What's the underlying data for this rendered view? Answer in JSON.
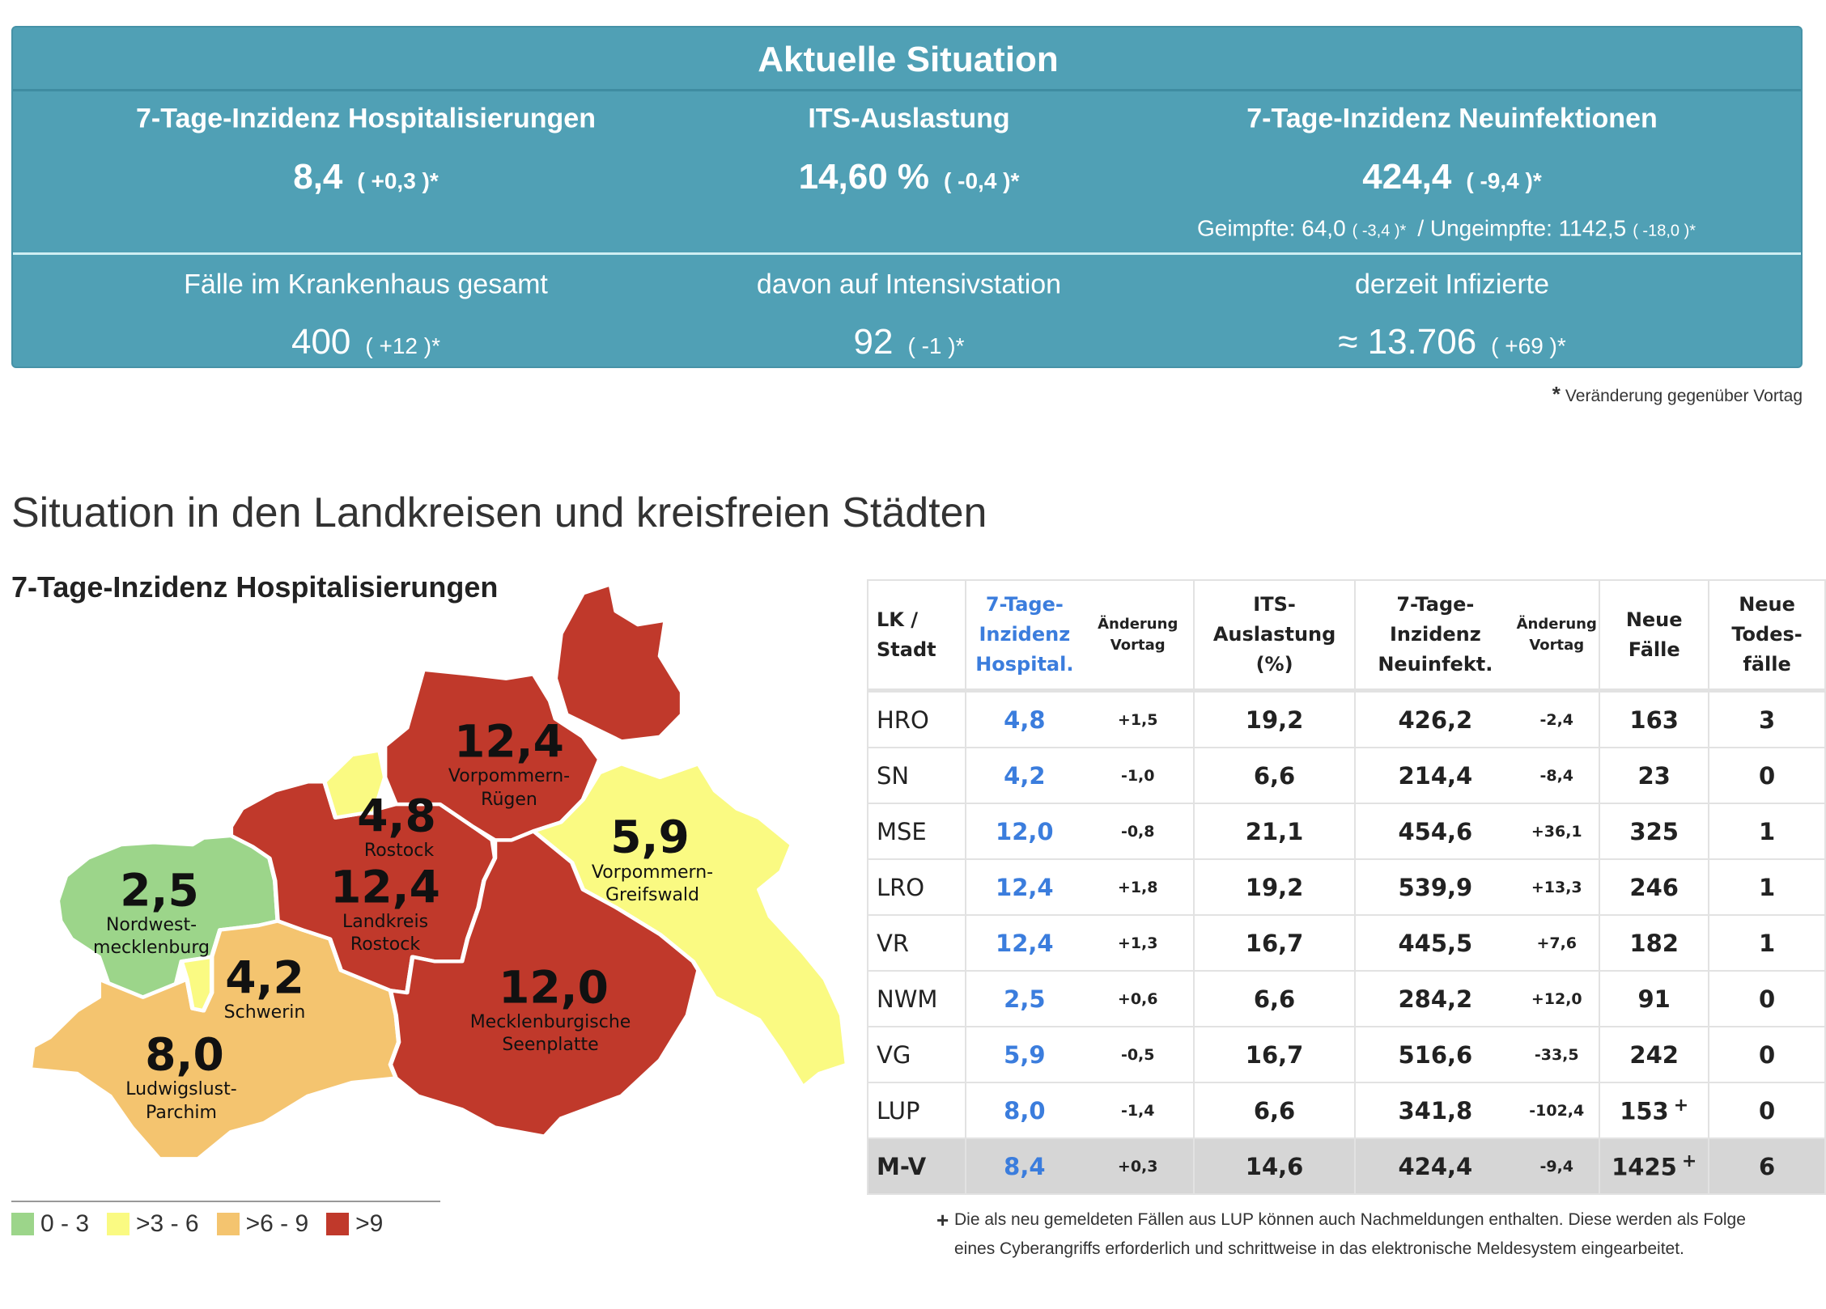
{
  "stats": {
    "title": "Aktuelle Situation",
    "hosp": {
      "label": "7-Tage-Inzidenz Hospitalisierungen",
      "value": "8,4",
      "change": "( +0,3 )*"
    },
    "its": {
      "label": "ITS-Auslastung",
      "value": "14,60 %",
      "change": "( -0,4 )*"
    },
    "neu": {
      "label": "7-Tage-Inzidenz Neuinfektionen",
      "value": "424,4",
      "change": "( -9,4 )*",
      "geimpfte_label": "Geimpfte: 64,0",
      "geimpfte_change": "( -3,4 )*",
      "separator": "/",
      "ungeimpfte_label": "Ungeimpfte: 1142,5",
      "ungeimpfte_change": "( -18,0 )*"
    },
    "krankenhaus": {
      "label": "Fälle im Krankenhaus gesamt",
      "value": "400",
      "change": "( +12 )*"
    },
    "intensiv": {
      "label": "davon auf Intensivstation",
      "value": "92",
      "change": "( -1 )*"
    },
    "infizierte": {
      "label": "derzeit Infizierte",
      "value": "≈ 13.706",
      "change": "( +69 )*"
    },
    "footnote_star": "*",
    "footnote": "Veränderung gegenüber Vortag",
    "color": "#50a0b5"
  },
  "section_title": "Situation in den Landkreisen und kreisfreien Städten",
  "map": {
    "title": "7-Tage-Inzidenz Hospitalisierungen",
    "regions": [
      {
        "id": "VR",
        "value": "12,4",
        "name1": "Vorpommern-",
        "name2": "Rügen",
        "color": "#c0392b"
      },
      {
        "id": "HRO",
        "value": "4,8",
        "name1": "Rostock",
        "name2": "",
        "color": "#fafa82"
      },
      {
        "id": "LRO",
        "value": "12,4",
        "name1": "Landkreis",
        "name2": "Rostock",
        "color": "#c0392b"
      },
      {
        "id": "NWM",
        "value": "2,5",
        "name1": "Nordwest-",
        "name2": "mecklenburg",
        "color": "#9cd58a"
      },
      {
        "id": "SN",
        "value": "4,2",
        "name1": "Schwerin",
        "name2": "",
        "color": "#fafa82"
      },
      {
        "id": "LUP",
        "value": "8,0",
        "name1": "Ludwigslust-",
        "name2": "Parchim",
        "color": "#f4c46f"
      },
      {
        "id": "VG",
        "value": "5,9",
        "name1": "Vorpommern-",
        "name2": "Greifswald",
        "color": "#fafa82"
      },
      {
        "id": "MSE",
        "value": "12,0",
        "name1": "Mecklenburgische",
        "name2": "Seenplatte",
        "color": "#c0392b"
      }
    ],
    "legend": [
      {
        "label": "0 - 3",
        "color": "#9cd58a"
      },
      {
        "label": ">3 - 6",
        "color": "#fafa82"
      },
      {
        "label": ">6 - 9",
        "color": "#f4c46f"
      },
      {
        "label": ">9",
        "color": "#c0392b"
      }
    ]
  },
  "table": {
    "headers": {
      "lk": [
        "LK /",
        "Stadt"
      ],
      "hosp": [
        "7-Tage-",
        "Inzidenz",
        "Hospital."
      ],
      "hosp_chg": [
        "Änderung",
        "Vortag"
      ],
      "its": [
        "ITS-",
        "Auslastung",
        "(%)"
      ],
      "neu": [
        "7-Tage-",
        "Inzidenz",
        "Neuinfekt."
      ],
      "neu_chg": [
        "Änderung",
        "Vortag"
      ],
      "faelle": [
        "Neue",
        "Fälle"
      ],
      "tode": [
        "Neue",
        "Todes-",
        "fälle"
      ]
    },
    "rows": [
      {
        "lk": "HRO",
        "hosp": "4,8",
        "hosp_chg": "+1,5",
        "its": "19,2",
        "neu": "426,2",
        "neu_chg": "-2,4",
        "faelle": "163",
        "faelle_mark": "",
        "tode": "3"
      },
      {
        "lk": "SN",
        "hosp": "4,2",
        "hosp_chg": "-1,0",
        "its": "6,6",
        "neu": "214,4",
        "neu_chg": "-8,4",
        "faelle": "23",
        "faelle_mark": "",
        "tode": "0"
      },
      {
        "lk": "MSE",
        "hosp": "12,0",
        "hosp_chg": "-0,8",
        "its": "21,1",
        "neu": "454,6",
        "neu_chg": "+36,1",
        "faelle": "325",
        "faelle_mark": "",
        "tode": "1"
      },
      {
        "lk": "LRO",
        "hosp": "12,4",
        "hosp_chg": "+1,8",
        "its": "19,2",
        "neu": "539,9",
        "neu_chg": "+13,3",
        "faelle": "246",
        "faelle_mark": "",
        "tode": "1"
      },
      {
        "lk": "VR",
        "hosp": "12,4",
        "hosp_chg": "+1,3",
        "its": "16,7",
        "neu": "445,5",
        "neu_chg": "+7,6",
        "faelle": "182",
        "faelle_mark": "",
        "tode": "1"
      },
      {
        "lk": "NWM",
        "hosp": "2,5",
        "hosp_chg": "+0,6",
        "its": "6,6",
        "neu": "284,2",
        "neu_chg": "+12,0",
        "faelle": "91",
        "faelle_mark": "",
        "tode": "0"
      },
      {
        "lk": "VG",
        "hosp": "5,9",
        "hosp_chg": "-0,5",
        "its": "16,7",
        "neu": "516,6",
        "neu_chg": "-33,5",
        "faelle": "242",
        "faelle_mark": "",
        "tode": "0"
      },
      {
        "lk": "LUP",
        "hosp": "8,0",
        "hosp_chg": "-1,4",
        "its": "6,6",
        "neu": "341,8",
        "neu_chg": "-102,4",
        "faelle": "153",
        "faelle_mark": "+",
        "tode": "0"
      },
      {
        "lk": "M-V",
        "hosp": "8,4",
        "hosp_chg": "+0,3",
        "its": "14,6",
        "neu": "424,4",
        "neu_chg": "-9,4",
        "faelle": "1425",
        "faelle_mark": "+",
        "tode": "6",
        "total": true
      }
    ],
    "footnote_mark": "+",
    "footnote": "Die als neu gemeldeten Fällen aus LUP können auch Nachmeldungen enthalten. Diese werden als Folge eines Cyberangriffs erforderlich und schrittweise in das elektronische Meldesystem eingearbeitet.",
    "accent": "#3b7ddd"
  }
}
